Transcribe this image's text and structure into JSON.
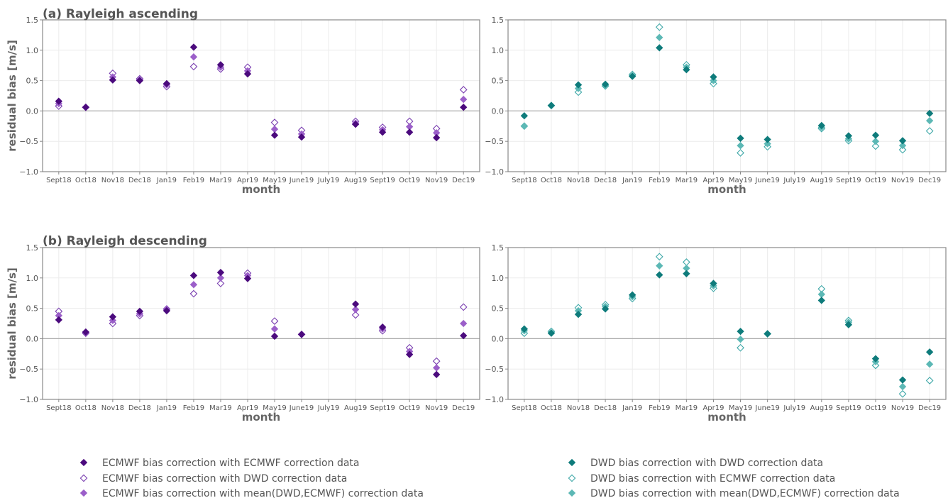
{
  "colors": {
    "ecmwf_ecmwf": "#4B0A7D",
    "ecmwf_dwd": "#7A3FB0",
    "ecmwf_mean": "#9B5FC9",
    "dwd_dwd": "#0E7B7B",
    "dwd_ecmwf": "#3FA8A8",
    "dwd_mean": "#5CB8B5"
  },
  "legend": {
    "left": [
      "ECMWF bias correction with ECMWF correction data",
      "ECMWF bias correction with DWD correction data",
      "ECMWF bias correction with mean(DWD,ECMWF) correction data"
    ],
    "right": [
      "DWD bias correction with DWD correction data",
      "DWD bias correction with ECMWF correction data",
      "DWD bias correction with mean(DWD,ECMWF) correction data"
    ]
  },
  "chart_data": [
    {
      "type": "scatter",
      "title": "(a) Rayleigh ascending",
      "xlabel": "month",
      "ylabel": "residual bias [m/s]",
      "ylim": [
        -1.0,
        1.5
      ],
      "yticks": [
        "−1.0",
        "−0.5",
        "0.0",
        "0.5",
        "1.0",
        "1.5"
      ],
      "categories": [
        "Sept18",
        "Oct18",
        "Nov18",
        "Dec18",
        "Jan19",
        "Feb19",
        "Mar19",
        "Apr19",
        "May19",
        "June19",
        "July19",
        "Aug19",
        "Sept19",
        "Oct19",
        "Nov19",
        "Dec19"
      ],
      "series": [
        {
          "name": "ECMWF bias correction with ECMWF correction data",
          "values": [
            0.16,
            0.06,
            0.51,
            0.5,
            0.45,
            1.05,
            0.76,
            0.61,
            -0.4,
            -0.43,
            null,
            -0.22,
            -0.35,
            -0.35,
            -0.44,
            0.06
          ]
        },
        {
          "name": "ECMWF bias correction with DWD correction data",
          "values": [
            0.08,
            0.06,
            0.62,
            0.53,
            0.4,
            0.73,
            0.69,
            0.72,
            -0.19,
            -0.32,
            null,
            -0.17,
            -0.27,
            -0.17,
            -0.29,
            0.35
          ]
        },
        {
          "name": "ECMWF bias correction with mean(DWD,ECMWF) correction data",
          "values": [
            0.12,
            0.06,
            0.56,
            0.51,
            0.43,
            0.89,
            0.72,
            0.66,
            -0.3,
            -0.38,
            null,
            -0.2,
            -0.31,
            -0.26,
            -0.36,
            0.19
          ]
        }
      ]
    },
    {
      "type": "scatter",
      "title": "",
      "xlabel": "month",
      "ylabel": "",
      "ylim": [
        -1.0,
        1.5
      ],
      "yticks": [
        "−1.0",
        "−0.5",
        "0.0",
        "0.5",
        "1.0",
        "1.5"
      ],
      "categories": [
        "Sept18",
        "Oct18",
        "Nov18",
        "Dec18",
        "Jan19",
        "Feb19",
        "Mar19",
        "Apr19",
        "May19",
        "June19",
        "July19",
        "Aug19",
        "Sept19",
        "Oct19",
        "Nov19",
        "Dec19"
      ],
      "series": [
        {
          "name": "DWD bias correction with DWD correction data",
          "values": [
            -0.08,
            0.09,
            0.43,
            0.44,
            0.57,
            1.04,
            0.68,
            0.56,
            -0.45,
            -0.47,
            null,
            -0.24,
            -0.41,
            -0.4,
            -0.49,
            -0.04
          ]
        },
        {
          "name": "DWD bias correction with ECMWF correction data",
          "values": [
            -0.25,
            0.09,
            0.31,
            0.41,
            0.6,
            1.38,
            0.76,
            0.45,
            -0.69,
            -0.59,
            null,
            -0.29,
            -0.49,
            -0.58,
            -0.64,
            -0.33
          ]
        },
        {
          "name": "DWD bias correction with mean(DWD,ECMWF) correction data",
          "values": [
            -0.25,
            0.09,
            0.37,
            0.42,
            0.58,
            1.21,
            0.72,
            0.5,
            -0.57,
            -0.54,
            null,
            -0.27,
            -0.46,
            -0.5,
            -0.57,
            -0.16
          ]
        }
      ]
    },
    {
      "type": "scatter",
      "title": "(b) Rayleigh descending",
      "xlabel": "month",
      "ylabel": "residual bias [m/s]",
      "ylim": [
        -1.0,
        1.5
      ],
      "yticks": [
        "−1.0",
        "−0.5",
        "0.0",
        "0.5",
        "1.0",
        "1.5"
      ],
      "categories": [
        "Sept18",
        "Oct18",
        "Nov18",
        "Dec18",
        "Jan19",
        "Feb19",
        "Mar19",
        "Apr19",
        "May19",
        "June19",
        "July19",
        "Aug19",
        "Sept19",
        "Oct19",
        "Nov19",
        "Dec19"
      ],
      "series": [
        {
          "name": "ECMWF bias correction with ECMWF correction data",
          "values": [
            0.31,
            0.11,
            0.36,
            0.45,
            0.46,
            1.04,
            1.09,
            0.99,
            0.04,
            0.07,
            null,
            0.57,
            0.19,
            -0.26,
            -0.59,
            0.05
          ]
        },
        {
          "name": "ECMWF bias correction with DWD correction data",
          "values": [
            0.45,
            0.09,
            0.25,
            0.38,
            0.49,
            0.74,
            0.91,
            1.08,
            0.29,
            0.07,
            null,
            0.39,
            0.13,
            -0.15,
            -0.37,
            0.52
          ]
        },
        {
          "name": "ECMWF bias correction with mean(DWD,ECMWF) correction data",
          "values": [
            0.38,
            0.1,
            0.3,
            0.41,
            0.48,
            0.89,
            1.0,
            1.04,
            0.16,
            0.07,
            null,
            0.48,
            0.16,
            -0.21,
            -0.48,
            0.25
          ]
        }
      ]
    },
    {
      "type": "scatter",
      "title": "",
      "xlabel": "month",
      "ylabel": "",
      "ylim": [
        -1.0,
        1.5
      ],
      "yticks": [
        "−1.0",
        "−0.5",
        "0.0",
        "0.5",
        "1.0",
        "1.5"
      ],
      "categories": [
        "Sept18",
        "Oct18",
        "Nov18",
        "Dec18",
        "Jan19",
        "Feb19",
        "Mar19",
        "Apr19",
        "May19",
        "June19",
        "July19",
        "Aug19",
        "Sept19",
        "Oct19",
        "Nov19",
        "Dec19"
      ],
      "series": [
        {
          "name": "DWD bias correction with DWD correction data",
          "values": [
            0.16,
            0.09,
            0.4,
            0.49,
            0.72,
            1.05,
            1.07,
            0.91,
            0.12,
            0.08,
            null,
            0.63,
            0.23,
            -0.33,
            -0.68,
            -0.22
          ]
        },
        {
          "name": "DWD bias correction with ECMWF correction data",
          "values": [
            0.09,
            0.12,
            0.51,
            0.56,
            0.66,
            1.35,
            1.26,
            0.83,
            -0.15,
            0.08,
            null,
            0.82,
            0.3,
            -0.44,
            -0.91,
            -0.69
          ]
        },
        {
          "name": "DWD bias correction with mean(DWD,ECMWF) correction data",
          "values": [
            0.13,
            0.1,
            0.46,
            0.53,
            0.69,
            1.2,
            1.16,
            0.87,
            -0.01,
            0.08,
            null,
            0.73,
            0.27,
            -0.38,
            -0.79,
            -0.42
          ]
        }
      ]
    }
  ]
}
